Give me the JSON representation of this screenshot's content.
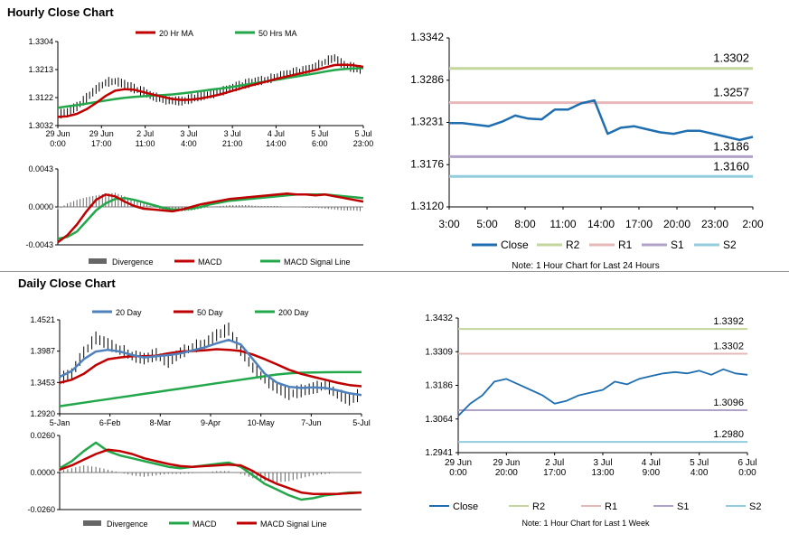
{
  "hourly": {
    "title": "Hourly Close Chart",
    "ma_legend": [
      {
        "name": "20 Hr MA",
        "color": "#c00000"
      },
      {
        "name": "50 Hrs MA",
        "color": "#22a84a"
      }
    ],
    "ma_chart": {
      "y_ticks": [
        "1.3304",
        "1.3213",
        "1.3122",
        "1.3032"
      ],
      "ylim": [
        1.3032,
        1.3304
      ],
      "x_ticks": [
        [
          "29 Jun",
          "0:00"
        ],
        [
          "29 Jun",
          "17:00"
        ],
        [
          "2 Jul",
          "11:00"
        ],
        [
          "3 Jul",
          "4:00"
        ],
        [
          "3 Jul",
          "21:00"
        ],
        [
          "4 Jul",
          "14:00"
        ],
        [
          "5 Jul",
          "6:00"
        ],
        [
          "5 Jul",
          "23:00"
        ]
      ],
      "close": [
        1.3066,
        1.3075,
        1.3092,
        1.312,
        1.3148,
        1.317,
        1.3175,
        1.3165,
        1.315,
        1.314,
        1.3125,
        1.3115,
        1.3112,
        1.311,
        1.3118,
        1.3126,
        1.3132,
        1.314,
        1.315,
        1.316,
        1.3168,
        1.3175,
        1.318,
        1.319,
        1.3196,
        1.3204,
        1.321,
        1.3222,
        1.3238,
        1.325,
        1.3225,
        1.3218,
        1.321
      ],
      "ma20": [
        1.306,
        1.3062,
        1.307,
        1.3085,
        1.3105,
        1.3128,
        1.3145,
        1.315,
        1.3148,
        1.314,
        1.3132,
        1.3125,
        1.3118,
        1.3115,
        1.3116,
        1.312,
        1.3126,
        1.3133,
        1.3142,
        1.3151,
        1.316,
        1.3168,
        1.3176,
        1.3184,
        1.3191,
        1.3198,
        1.3205,
        1.3212,
        1.322,
        1.3228,
        1.3229,
        1.3227,
        1.3222
      ],
      "ma50": [
        1.309,
        1.3094,
        1.3098,
        1.3103,
        1.3108,
        1.3113,
        1.3118,
        1.3122,
        1.3125,
        1.3127,
        1.3129,
        1.3131,
        1.3133,
        1.3136,
        1.314,
        1.3144,
        1.3148,
        1.3152,
        1.3156,
        1.3161,
        1.3166,
        1.3171,
        1.3176,
        1.3181,
        1.3186,
        1.3191,
        1.3196,
        1.3201,
        1.3207,
        1.3212,
        1.3215,
        1.3217,
        1.3218
      ]
    },
    "macd_chart": {
      "y_ticks": [
        "0.0043",
        "0.0000",
        "-0.0043"
      ],
      "ylim": [
        -0.0043,
        0.0043
      ],
      "divergence": [
        -0.0003,
        0.0004,
        0.0008,
        0.0011,
        0.0013,
        0.0015,
        0.0016,
        0.0012,
        0.0008,
        0.0004,
        0.0,
        -0.0003,
        -0.0005,
        -0.0005,
        -0.0004,
        -0.0002,
        0.0,
        0.0001,
        0.0002,
        0.0002,
        0.0002,
        0.0001,
        0.0001,
        0.0001,
        0.0,
        0.0,
        -0.0001,
        -0.0001,
        -0.0002,
        -0.0003,
        -0.0004,
        -0.0004,
        -0.0005
      ],
      "macd": [
        -0.004,
        -0.0032,
        -0.002,
        -0.0005,
        0.0008,
        0.0014,
        0.0012,
        0.0006,
        0.0001,
        -0.0002,
        -0.0003,
        -0.0004,
        -0.0005,
        -0.0003,
        0.0,
        0.0003,
        0.0005,
        0.0007,
        0.0009,
        0.001,
        0.0011,
        0.0012,
        0.0013,
        0.0014,
        0.0015,
        0.0014,
        0.0014,
        0.0013,
        0.0014,
        0.0012,
        0.001,
        0.0008,
        0.0006
      ],
      "signal": [
        -0.0036,
        -0.0034,
        -0.0028,
        -0.0016,
        -0.0004,
        0.0004,
        0.0009,
        0.001,
        0.0008,
        0.0005,
        0.0002,
        -0.0001,
        -0.0003,
        -0.0003,
        -0.0002,
        0.0,
        0.0003,
        0.0005,
        0.0007,
        0.0008,
        0.0009,
        0.001,
        0.0011,
        0.0012,
        0.0013,
        0.0014,
        0.0014,
        0.0014,
        0.0014,
        0.0013,
        0.0012,
        0.0011,
        0.001
      ]
    },
    "macd_legend": [
      {
        "name": "Divergence",
        "color": "#666666",
        "kind": "bar"
      },
      {
        "name": "MACD",
        "color": "#c00000",
        "kind": "line"
      },
      {
        "name": "MACD Signal Line",
        "color": "#22a84a",
        "kind": "line"
      }
    ],
    "levels_chart": {
      "y_ticks": [
        "1.3342",
        "1.3286",
        "1.3231",
        "1.3176",
        "1.3120"
      ],
      "ylim": [
        1.312,
        1.3342
      ],
      "x_ticks": [
        "3:00",
        "5:00",
        "8:00",
        "11:00",
        "14:00",
        "17:00",
        "20:00",
        "23:00",
        "2:00"
      ],
      "close": [
        1.323,
        1.323,
        1.3228,
        1.3226,
        1.3232,
        1.324,
        1.3236,
        1.3235,
        1.3248,
        1.3248,
        1.3256,
        1.326,
        1.3216,
        1.3224,
        1.3226,
        1.3222,
        1.3218,
        1.3216,
        1.322,
        1.322,
        1.3216,
        1.3212,
        1.3208,
        1.3212
      ],
      "levels": [
        {
          "name": "R2",
          "value": 1.3302,
          "label": "1.3302",
          "color": "#c3d69b"
        },
        {
          "name": "R1",
          "value": 1.3257,
          "label": "1.3257",
          "color": "#e6b9b8"
        },
        {
          "name": "S1",
          "value": 1.3186,
          "label": "1.3186",
          "color": "#b3a2c7"
        },
        {
          "name": "S2",
          "value": 1.316,
          "label": "1.3160",
          "color": "#93cddd"
        }
      ],
      "close_label": "Close",
      "close_color": "#1f6eb0",
      "note": "Note: 1 Hour Chart for Last 24 Hours"
    }
  },
  "daily": {
    "title": "Daily Close Chart",
    "ma_legend": [
      {
        "name": "20 Day",
        "color": "#4f81bd"
      },
      {
        "name": "50 Day",
        "color": "#c00000"
      },
      {
        "name": "200 Day",
        "color": "#22a84a"
      }
    ],
    "ma_chart": {
      "y_ticks": [
        "1.4521",
        "1.3987",
        "1.3453",
        "1.2920"
      ],
      "ylim": [
        1.292,
        1.4521
      ],
      "x_ticks": [
        "5-Jan",
        "6-Feb",
        "8-Mar",
        "9-Apr",
        "10-May",
        "7-Jun",
        "5-Jul"
      ],
      "close": [
        1.35,
        1.36,
        1.395,
        1.42,
        1.41,
        1.4,
        1.39,
        1.385,
        1.392,
        1.38,
        1.395,
        1.405,
        1.41,
        1.425,
        1.435,
        1.4,
        1.37,
        1.35,
        1.335,
        1.325,
        1.33,
        1.335,
        1.34,
        1.325,
        1.315,
        1.325
      ],
      "ma20": [
        1.355,
        1.365,
        1.385,
        1.398,
        1.401,
        1.398,
        1.392,
        1.388,
        1.39,
        1.392,
        1.395,
        1.4,
        1.405,
        1.412,
        1.418,
        1.41,
        1.385,
        1.36,
        1.345,
        1.338,
        1.336,
        1.337,
        1.336,
        1.332,
        1.327,
        1.324
      ],
      "ma50": [
        1.345,
        1.35,
        1.36,
        1.375,
        1.385,
        1.388,
        1.39,
        1.39,
        1.391,
        1.395,
        1.398,
        1.399,
        1.4,
        1.402,
        1.401,
        1.399,
        1.393,
        1.385,
        1.376,
        1.367,
        1.36,
        1.355,
        1.35,
        1.345,
        1.341,
        1.339
      ],
      "ma200": [
        1.305,
        1.308,
        1.311,
        1.314,
        1.317,
        1.32,
        1.323,
        1.326,
        1.329,
        1.332,
        1.335,
        1.338,
        1.341,
        1.344,
        1.347,
        1.35,
        1.353,
        1.356,
        1.359,
        1.361,
        1.362,
        1.3625,
        1.3628,
        1.363,
        1.363,
        1.363
      ]
    },
    "macd_chart": {
      "y_ticks": [
        "0.0260",
        "0.0000",
        "-0.0260"
      ],
      "ylim": [
        -0.026,
        0.026
      ],
      "divergence": [
        0.001,
        0.003,
        0.005,
        0.004,
        0.002,
        0.0,
        -0.002,
        -0.003,
        -0.002,
        -0.001,
        -0.001,
        -0.0005,
        0.0,
        0.001,
        0.001,
        -0.001,
        -0.004,
        -0.006,
        -0.007,
        -0.006,
        -0.004,
        -0.002,
        -0.001,
        0.0,
        0.0,
        0.0
      ],
      "macd": [
        0.003,
        0.008,
        0.015,
        0.021,
        0.015,
        0.012,
        0.01,
        0.008,
        0.006,
        0.004,
        0.003,
        0.004,
        0.005,
        0.006,
        0.007,
        0.004,
        -0.002,
        -0.008,
        -0.012,
        -0.016,
        -0.019,
        -0.018,
        -0.016,
        -0.015,
        -0.014,
        -0.014
      ],
      "signal": [
        0.002,
        0.005,
        0.009,
        0.013,
        0.016,
        0.015,
        0.013,
        0.01,
        0.008,
        0.006,
        0.0045,
        0.004,
        0.0045,
        0.005,
        0.0055,
        0.005,
        0.001,
        -0.004,
        -0.008,
        -0.011,
        -0.014,
        -0.015,
        -0.015,
        -0.015,
        -0.0145,
        -0.014
      ]
    },
    "macd_legend": [
      {
        "name": "Divergence",
        "color": "#666666",
        "kind": "bar"
      },
      {
        "name": "MACD",
        "color": "#22a84a",
        "kind": "line"
      },
      {
        "name": "MACD Signal Line",
        "color": "#c00000",
        "kind": "line"
      }
    ],
    "levels_chart": {
      "y_ticks": [
        "1.3432",
        "1.3309",
        "1.3186",
        "1.3064",
        "1.2941"
      ],
      "ylim": [
        1.2941,
        1.3432
      ],
      "x_ticks": [
        [
          "29 Jun",
          "0:00"
        ],
        [
          "29 Jun",
          "20:00"
        ],
        [
          "2 Jul",
          "17:00"
        ],
        [
          "3 Jul",
          "13:00"
        ],
        [
          "4 Jul",
          "9:00"
        ],
        [
          "5 Jul",
          "4:00"
        ],
        [
          "6 Jul",
          "0:00"
        ]
      ],
      "close": [
        1.3075,
        1.312,
        1.315,
        1.32,
        1.321,
        1.319,
        1.317,
        1.315,
        1.312,
        1.313,
        1.315,
        1.316,
        1.317,
        1.32,
        1.319,
        1.321,
        1.322,
        1.323,
        1.3235,
        1.323,
        1.324,
        1.3225,
        1.3245,
        1.323,
        1.3225
      ],
      "levels": [
        {
          "name": "R2",
          "value": 1.3392,
          "label": "1.3392",
          "color": "#c3d69b"
        },
        {
          "name": "R1",
          "value": 1.3302,
          "label": "1.3302",
          "color": "#e6b9b8"
        },
        {
          "name": "S1",
          "value": 1.3096,
          "label": "1.3096",
          "color": "#b3a2c7"
        },
        {
          "name": "S2",
          "value": 1.298,
          "label": "1.2980",
          "color": "#93cddd"
        }
      ],
      "close_label": "Close",
      "close_color": "#1f6eb0",
      "note": "Note: 1 Hour Chart for Last 1 Week"
    }
  }
}
